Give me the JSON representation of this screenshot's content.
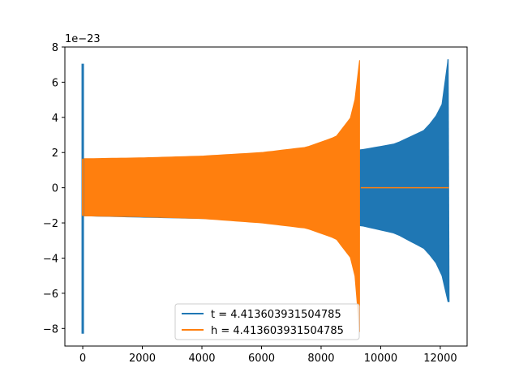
{
  "chart_data": {
    "type": "line",
    "title": "",
    "xlabel": "",
    "ylabel": "",
    "offset_label": "1e−23",
    "xlim": [
      -600,
      12900
    ],
    "ylim": [
      -9,
      8
    ],
    "x_ticks": [
      0,
      2000,
      4000,
      6000,
      8000,
      10000,
      12000
    ],
    "x_tick_labels": [
      "0",
      "2000",
      "4000",
      "6000",
      "8000",
      "10000",
      "12000"
    ],
    "y_ticks": [
      -8,
      -6,
      -4,
      -2,
      0,
      2,
      4,
      6,
      8
    ],
    "y_tick_labels": [
      "−8",
      "−6",
      "−4",
      "−2",
      "0",
      "2",
      "4",
      "6",
      "8"
    ],
    "grid": false,
    "legend_position": "lower center",
    "series": [
      {
        "name": "t = 4.413603931504785",
        "color": "#1f77b4",
        "x_start": 0,
        "x_end": 12290,
        "initial_spike": [
          -8.3,
          7.05
        ],
        "envelope_points": [
          {
            "x": 70,
            "upper": 1.6,
            "lower": -1.6
          },
          {
            "x": 4000,
            "upper": 1.75,
            "lower": -1.75
          },
          {
            "x": 9330,
            "upper": 2.15,
            "lower": -2.15
          },
          {
            "x": 10500,
            "upper": 2.5,
            "lower": -2.6
          },
          {
            "x": 11500,
            "upper": 3.3,
            "lower": -3.5
          },
          {
            "x": 12000,
            "upper": 4.4,
            "lower": -4.6
          },
          {
            "x": 12200,
            "upper": 5.6,
            "lower": -6.0
          },
          {
            "x": 12260,
            "upper": 7.3,
            "lower": -6.5
          }
        ]
      },
      {
        "name": "h = 4.413603931504785",
        "color": "#ff7f0e",
        "x_start": 0,
        "x_end": 12290,
        "active_end": 9330,
        "envelope_points": [
          {
            "x": 50,
            "upper": 1.65,
            "lower": -1.6
          },
          {
            "x": 2000,
            "upper": 1.7,
            "lower": -1.65
          },
          {
            "x": 4000,
            "upper": 1.8,
            "lower": -1.75
          },
          {
            "x": 6000,
            "upper": 2.0,
            "lower": -2.0
          },
          {
            "x": 7500,
            "upper": 2.3,
            "lower": -2.3
          },
          {
            "x": 8500,
            "upper": 2.9,
            "lower": -2.9
          },
          {
            "x": 9000,
            "upper": 4.0,
            "lower": -4.0
          },
          {
            "x": 9200,
            "upper": 5.5,
            "lower": -5.5
          },
          {
            "x": 9290,
            "upper": 7.25,
            "lower": -8.2
          }
        ]
      }
    ]
  }
}
